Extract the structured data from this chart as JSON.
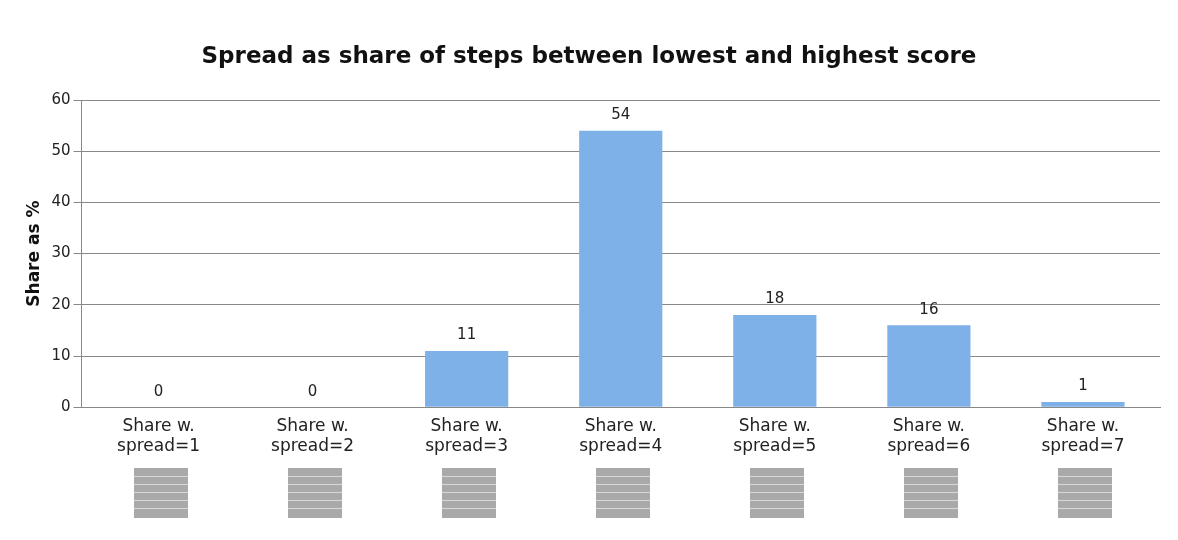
{
  "chart_data": {
    "type": "bar",
    "title": "Spread as share of steps between lowest and highest score",
    "ylabel": "Share as %",
    "categories": [
      "Share w. spread=1",
      "Share w. spread=2",
      "Share w. spread=3",
      "Share w. spread=4",
      "Share w. spread=5",
      "Share w. spread=6",
      "Share w. spread=7"
    ],
    "values": [
      0,
      0,
      11,
      54,
      18,
      16,
      1
    ],
    "color": "#7eb1e8",
    "ylim": [
      0,
      60
    ],
    "yticks": [
      0,
      10,
      20,
      30,
      40,
      50,
      60
    ],
    "grid": "y",
    "data_labels": true
  }
}
